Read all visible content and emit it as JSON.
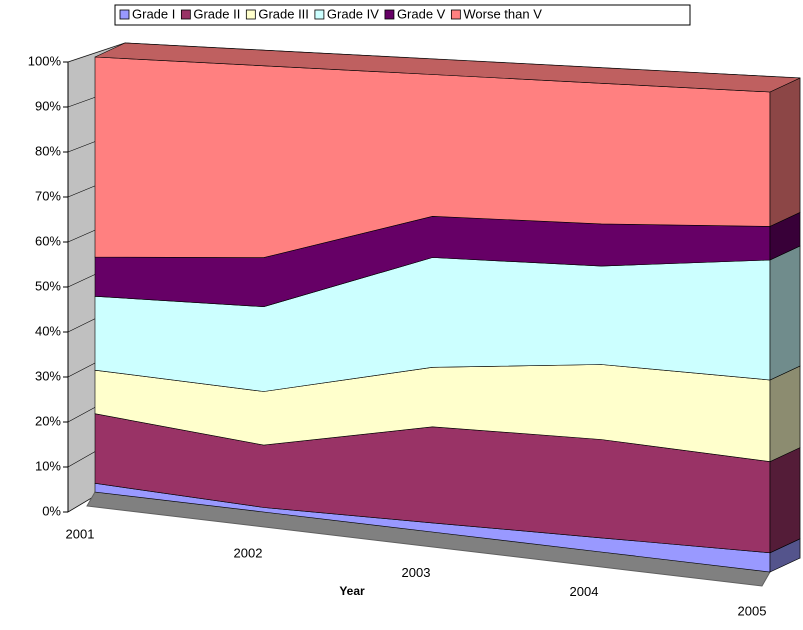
{
  "chart_data": {
    "type": "area3d",
    "categories": [
      "2001",
      "2002",
      "2003",
      "2004",
      "2005"
    ],
    "xlabel": "Year",
    "series": [
      {
        "name": "Grade I",
        "color": "#9999ff",
        "values": [
          2,
          1,
          2,
          3,
          4
        ]
      },
      {
        "name": "Grade II",
        "color": "#993366",
        "values": [
          16,
          14,
          21,
          21,
          19
        ]
      },
      {
        "name": "Grade III",
        "color": "#ffffcc",
        "values": [
          10,
          12,
          13,
          16,
          17
        ]
      },
      {
        "name": "Grade IV",
        "color": "#ccffff",
        "values": [
          17,
          19,
          24,
          21,
          25
        ]
      },
      {
        "name": "Grade V",
        "color": "#660066",
        "values": [
          9,
          11,
          9,
          9,
          7
        ]
      },
      {
        "name": "Worse than V",
        "color": "#ff8080",
        "values": [
          46,
          43,
          31,
          30,
          28
        ]
      }
    ],
    "ylim": [
      0,
      100
    ],
    "yticks": [
      {
        "value": 0,
        "label": "0%"
      },
      {
        "value": 10,
        "label": "10%"
      },
      {
        "value": 20,
        "label": "20%"
      },
      {
        "value": 30,
        "label": "30%"
      },
      {
        "value": 40,
        "label": "40%"
      },
      {
        "value": 50,
        "label": "50%"
      },
      {
        "value": 60,
        "label": "60%"
      },
      {
        "value": 70,
        "label": "70%"
      },
      {
        "value": 80,
        "label": "80%"
      },
      {
        "value": 90,
        "label": "90%"
      },
      {
        "value": 100,
        "label": "100%"
      }
    ],
    "grid": true,
    "legend": "top"
  }
}
